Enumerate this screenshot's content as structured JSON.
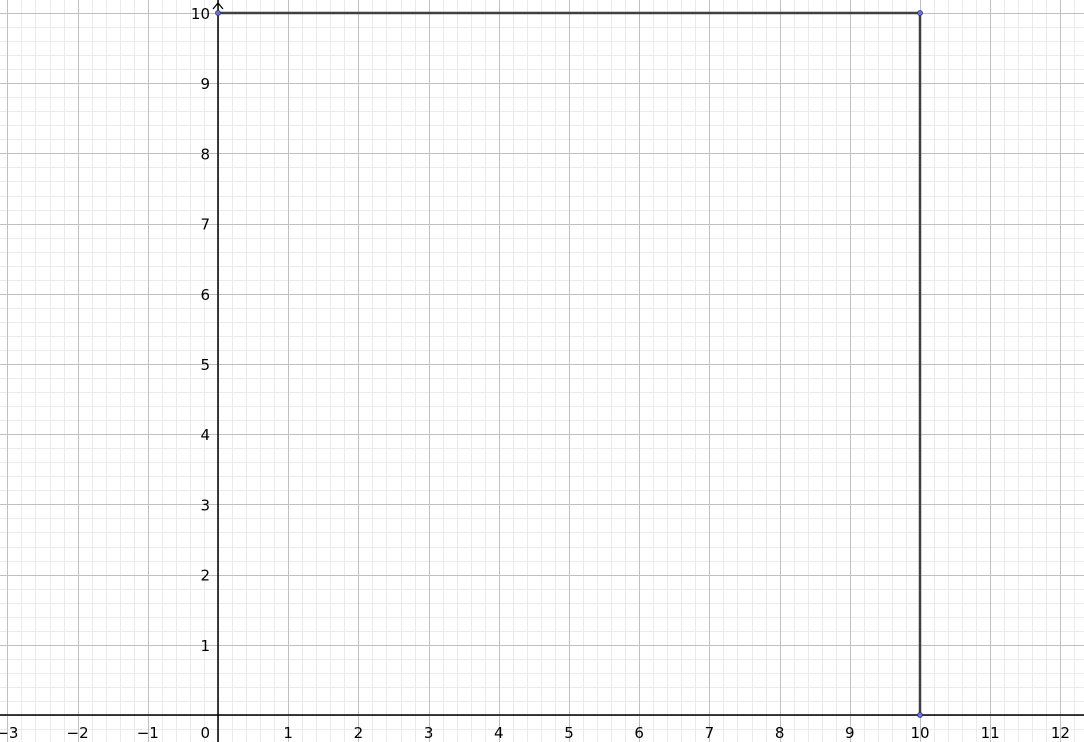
{
  "chart_data": {
    "type": "diagram",
    "xlim": [
      -3.1,
      12.3
    ],
    "ylim": [
      -0.37,
      10.2
    ],
    "grid": true,
    "minor_grid_per_unit": 5,
    "x_ticks": [
      "-3",
      "-2",
      "-1",
      "0",
      "1",
      "2",
      "3",
      "4",
      "5",
      "6",
      "7",
      "8",
      "9",
      "10",
      "11",
      "12"
    ],
    "y_ticks": [
      "1",
      "2",
      "3",
      "4",
      "5",
      "6",
      "7",
      "8",
      "9",
      "10"
    ],
    "points": [
      {
        "x": 0,
        "y": 10
      },
      {
        "x": 10,
        "y": 10
      },
      {
        "x": 10,
        "y": 0
      }
    ],
    "segments": [
      {
        "from": [
          0,
          10
        ],
        "to": [
          10,
          10
        ]
      },
      {
        "from": [
          10,
          10
        ],
        "to": [
          10,
          0
        ]
      }
    ],
    "colors": {
      "segment": "#404040",
      "point_fill": "#7070e0",
      "point_stroke": "#303070",
      "major_grid": "#c0c0c0",
      "minor_grid": "#ebebeb",
      "axis": "#000000"
    }
  }
}
